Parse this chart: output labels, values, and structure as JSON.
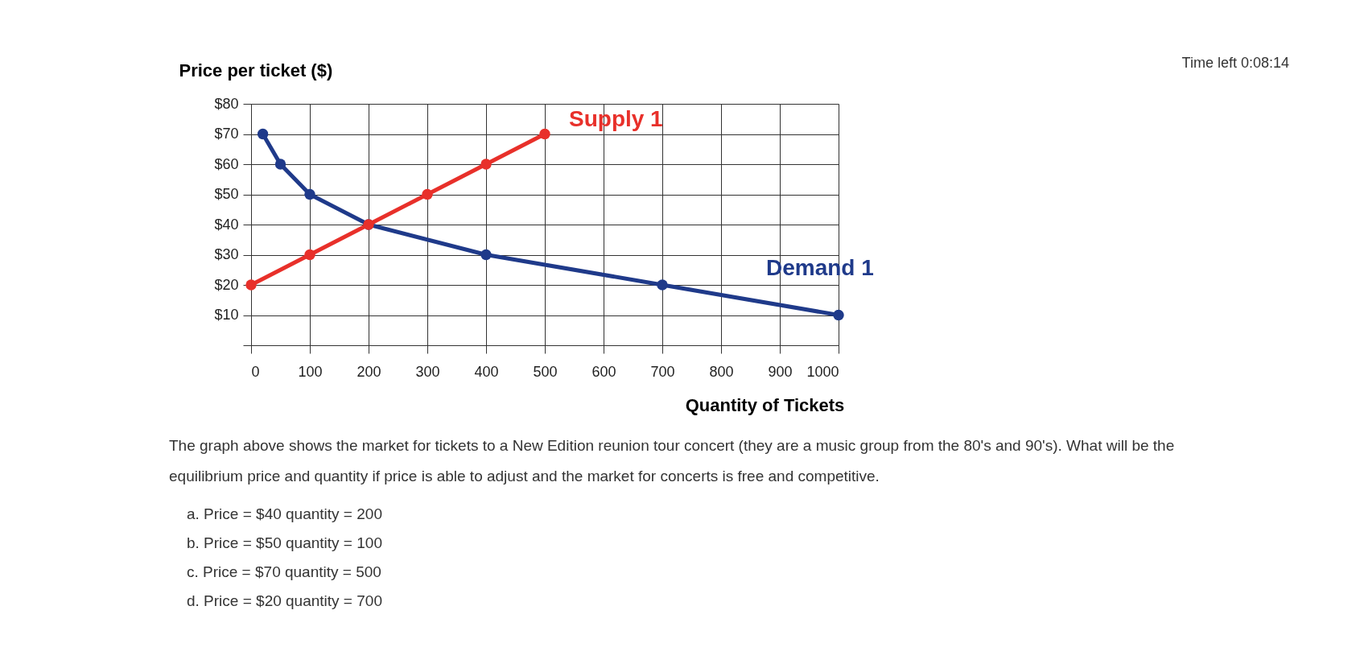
{
  "chart_data": {
    "type": "line",
    "xlabel": "Quantity of Tickets",
    "ylabel": "Price per ticket ($)",
    "series": [
      {
        "name": "Supply 1",
        "color": "#e8302a",
        "x": [
          0,
          100,
          200,
          300,
          400,
          500
        ],
        "values": [
          20,
          30,
          40,
          50,
          60,
          70
        ]
      },
      {
        "name": "Demand 1",
        "color": "#1f3a8a",
        "x": [
          20,
          50,
          100,
          200,
          400,
          700,
          1000
        ],
        "values": [
          70,
          60,
          50,
          40,
          30,
          20,
          10
        ]
      }
    ],
    "xlim": [
      0,
      1000
    ],
    "xticks": [
      0,
      100,
      200,
      300,
      400,
      500,
      600,
      700,
      800,
      900,
      1000
    ],
    "ylim": [
      0,
      80
    ],
    "yticks": [
      {
        "value": 0,
        "label": null
      },
      {
        "value": 10,
        "label": "$10"
      },
      {
        "value": 20,
        "label": "$20"
      },
      {
        "value": 30,
        "label": "$30"
      },
      {
        "value": 40,
        "label": "$40"
      },
      {
        "value": 50,
        "label": "$50"
      },
      {
        "value": 60,
        "label": "$60"
      },
      {
        "value": 70,
        "label": "$70"
      },
      {
        "value": 80,
        "label": "$80"
      }
    ],
    "grid": true,
    "marker": "circle",
    "line_style": "solid",
    "annotations": [
      "Time left 0:08:14",
      "The graph above shows the market for tickets to a New Edition reunion tour concert (they are a music group from the 80's and 90's). What will be the equilibrium price and quantity if price is able to adjust and the market for concerts is free and competitive.",
      "a.  Price = $40 quantity = 200",
      "b.  Price = $50 quantity = 100",
      "c.  Price = $70 quantity = 500",
      "d.  Price = $20 quantity = 700"
    ]
  }
}
